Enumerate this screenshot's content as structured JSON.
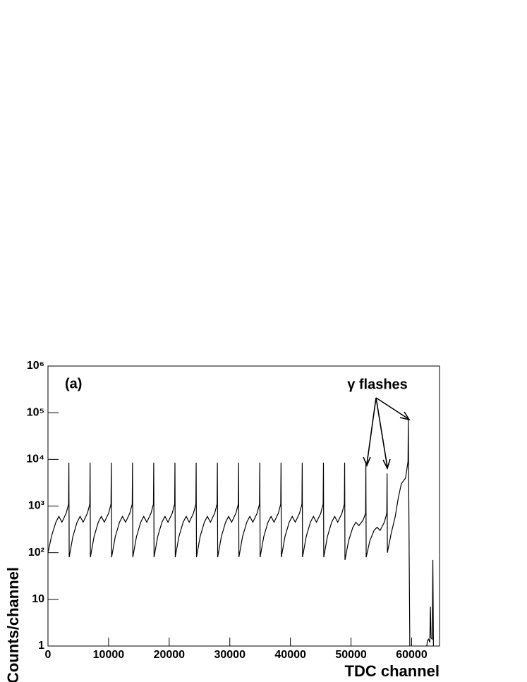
{
  "chart_data": {
    "type": "line",
    "xlabel": "TDC channel",
    "ylabel": "Counts/channel",
    "annotations": [
      "(a)",
      "γ flashes"
    ],
    "log_y": true,
    "grid": false,
    "color": "#000000",
    "xlim": [
      0,
      64600
    ],
    "xticks": [
      0,
      10000,
      20000,
      30000,
      40000,
      50000,
      60000
    ],
    "ylim": [
      1,
      1000000
    ],
    "yticks": [
      1,
      10,
      {
        "value": 100,
        "label": "10²"
      },
      {
        "value": 1000,
        "label": "10³"
      },
      {
        "value": 10000,
        "label": "10⁴"
      },
      {
        "value": 100000,
        "label": "10⁵"
      },
      {
        "value": 1000000,
        "label": "10⁶"
      }
    ],
    "x": [
      0,
      600,
      1300,
      1800,
      2300,
      3000,
      3400,
      3450,
      3500,
      4100,
      4800,
      5300,
      5800,
      6500,
      6900,
      6950,
      7000,
      7600,
      8300,
      8800,
      9300,
      10000,
      10400,
      10450,
      10500,
      11100,
      11800,
      12300,
      12800,
      13500,
      13900,
      13950,
      14000,
      14600,
      15300,
      15800,
      16300,
      17000,
      17400,
      17450,
      17500,
      18100,
      18800,
      19300,
      19800,
      20500,
      20900,
      20950,
      21000,
      21600,
      22300,
      22800,
      23300,
      24000,
      24400,
      24450,
      24500,
      25100,
      25800,
      26300,
      26800,
      27500,
      27900,
      27950,
      28000,
      28600,
      29300,
      29800,
      30300,
      31000,
      31400,
      31450,
      31500,
      32100,
      32800,
      33300,
      33800,
      34500,
      34900,
      34950,
      35000,
      35600,
      36300,
      36800,
      37300,
      38000,
      38400,
      38450,
      38500,
      39100,
      39800,
      40300,
      40800,
      41500,
      41900,
      41950,
      42000,
      42600,
      43300,
      43800,
      44300,
      45000,
      45400,
      45450,
      45500,
      46100,
      46800,
      47300,
      47800,
      48500,
      48900,
      48950,
      49000,
      49600,
      50300,
      50800,
      51300,
      52000,
      52400,
      52450,
      52500,
      53100,
      53800,
      54300,
      54800,
      55500,
      55900,
      55950,
      56000,
      56600,
      57300,
      57800,
      58300,
      59000,
      59400,
      59450,
      59550,
      59700,
      61000,
      62500,
      62600,
      62800,
      63000,
      63100,
      63200,
      63400,
      63500,
      63600
    ],
    "values": [
      100,
      230,
      450,
      600,
      450,
      700,
      1100,
      8500,
      80,
      220,
      450,
      600,
      450,
      700,
      1100,
      8500,
      80,
      220,
      450,
      600,
      450,
      700,
      1100,
      8500,
      80,
      220,
      450,
      600,
      450,
      700,
      1100,
      8500,
      80,
      220,
      450,
      600,
      450,
      700,
      1100,
      8500,
      80,
      220,
      450,
      600,
      450,
      700,
      1100,
      8500,
      80,
      220,
      450,
      600,
      450,
      700,
      1100,
      8500,
      80,
      220,
      450,
      600,
      450,
      700,
      1100,
      8500,
      80,
      220,
      450,
      600,
      450,
      700,
      1100,
      8500,
      80,
      220,
      450,
      600,
      450,
      700,
      1100,
      8500,
      80,
      220,
      450,
      600,
      450,
      700,
      1100,
      8500,
      80,
      220,
      450,
      600,
      450,
      700,
      1100,
      8500,
      80,
      220,
      450,
      600,
      450,
      700,
      1100,
      8500,
      80,
      220,
      450,
      600,
      450,
      700,
      1100,
      8500,
      70,
      180,
      350,
      450,
      380,
      500,
      700,
      9000,
      80,
      180,
      300,
      350,
      300,
      450,
      700,
      5000,
      100,
      250,
      600,
      1500,
      3000,
      4000,
      9000,
      70000,
      600,
      1,
      null,
      1,
      1.3,
      1.4,
      1.2,
      7,
      1.5,
      1.4,
      70,
      1
    ]
  }
}
